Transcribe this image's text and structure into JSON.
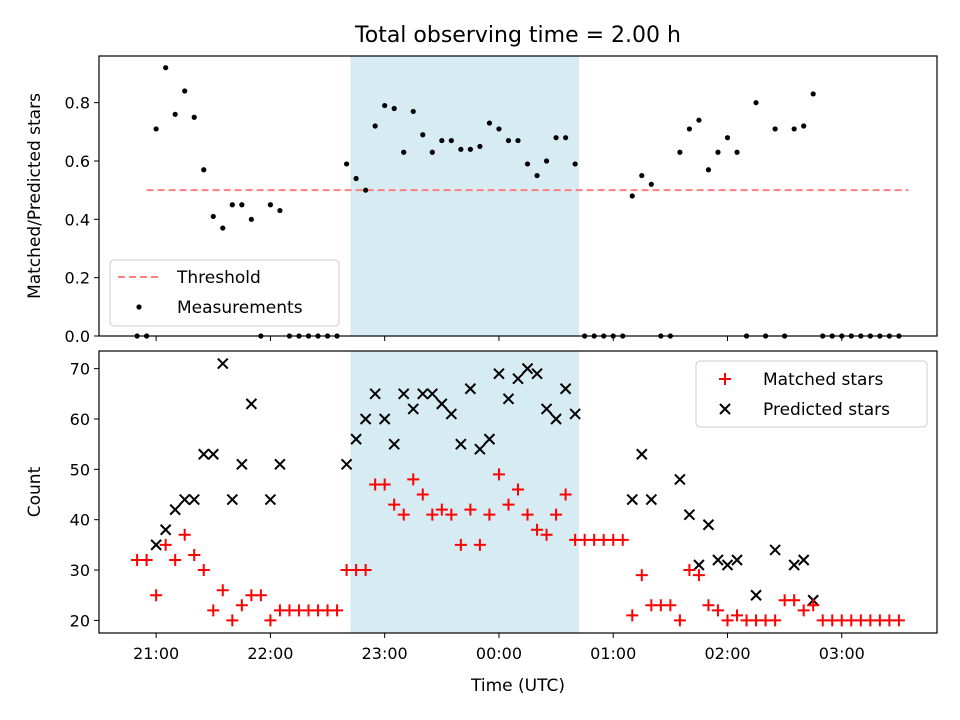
{
  "figure": {
    "title": "Total observing time = 2.00 h",
    "xlabel": "Time (UTC)"
  },
  "colors": {
    "threshold": "#ff8080",
    "measurement": "#000000",
    "matched": "#ff0000",
    "predicted": "#000000",
    "observing_window": "#add8e6"
  },
  "chart_data": [
    {
      "type": "scatter",
      "panel": "top",
      "ylabel": "Matched/Predicted stars",
      "ylim": [
        0,
        0.96
      ],
      "yticks": [
        0.0,
        0.2,
        0.4,
        0.6,
        0.8
      ],
      "ytick_labels": [
        "0.0",
        "0.2",
        "0.4",
        "0.6",
        "0.8"
      ],
      "legend": {
        "position": "lower-left",
        "entries": [
          "Threshold",
          "Measurements"
        ]
      },
      "threshold": {
        "name": "Threshold",
        "value": 0.5,
        "x_start": "20:55",
        "x_end": "03:35"
      },
      "shaded_window": {
        "start": "22:42",
        "end": "00:42"
      },
      "series": [
        {
          "name": "Measurements",
          "x": [
            "20:50",
            "20:55",
            "21:00",
            "21:05",
            "21:10",
            "21:15",
            "21:20",
            "21:25",
            "21:30",
            "21:35",
            "21:40",
            "21:45",
            "21:50",
            "21:55",
            "22:00",
            "22:05",
            "22:10",
            "22:15",
            "22:20",
            "22:25",
            "22:30",
            "22:35",
            "22:40",
            "22:45",
            "22:50",
            "22:55",
            "23:00",
            "23:05",
            "23:10",
            "23:15",
            "23:20",
            "23:25",
            "23:30",
            "23:35",
            "23:40",
            "23:45",
            "23:50",
            "23:55",
            "00:00",
            "00:05",
            "00:10",
            "00:15",
            "00:20",
            "00:25",
            "00:30",
            "00:35",
            "00:40",
            "00:45",
            "00:50",
            "00:55",
            "01:00",
            "01:05",
            "01:10",
            "01:15",
            "01:20",
            "01:25",
            "01:30",
            "01:35",
            "01:40",
            "01:45",
            "01:50",
            "01:55",
            "02:00",
            "02:05",
            "02:10",
            "02:15",
            "02:20",
            "02:25",
            "02:30",
            "02:35",
            "02:40",
            "02:45",
            "02:50",
            "02:55",
            "03:00",
            "03:05",
            "03:10",
            "03:15",
            "03:20",
            "03:25",
            "03:30"
          ],
          "y": [
            0.0,
            0.0,
            0.71,
            0.92,
            0.76,
            0.84,
            0.75,
            0.57,
            0.41,
            0.37,
            0.45,
            0.45,
            0.4,
            0.0,
            0.45,
            0.43,
            0.0,
            0.0,
            0.0,
            0.0,
            0.0,
            0.0,
            0.59,
            0.54,
            0.5,
            0.72,
            0.79,
            0.78,
            0.63,
            0.77,
            0.69,
            0.63,
            0.67,
            0.67,
            0.64,
            0.64,
            0.65,
            0.73,
            0.71,
            0.67,
            0.67,
            0.59,
            0.55,
            0.6,
            0.68,
            0.68,
            0.59,
            0.0,
            0.0,
            0.0,
            0.0,
            0.0,
            0.48,
            0.55,
            0.52,
            0.0,
            0.0,
            0.63,
            0.71,
            0.74,
            0.57,
            0.63,
            0.68,
            0.63,
            0.0,
            0.8,
            0.0,
            0.71,
            0.0,
            0.71,
            0.72,
            0.83,
            0.0,
            0.0,
            0.0,
            0.0,
            0.0,
            0.0,
            0.0,
            0.0,
            0.0
          ]
        }
      ]
    },
    {
      "type": "scatter",
      "panel": "bottom",
      "ylabel": "Count",
      "ylim": [
        17.5,
        73.5
      ],
      "yticks": [
        20,
        30,
        40,
        50,
        60,
        70
      ],
      "ytick_labels": [
        "20",
        "30",
        "40",
        "50",
        "60",
        "70"
      ],
      "xlim": [
        "20:30",
        "03:50"
      ],
      "xticks": [
        "21:00",
        "22:00",
        "23:00",
        "00:00",
        "01:00",
        "02:00",
        "03:00"
      ],
      "xtick_labels": [
        "21:00",
        "22:00",
        "23:00",
        "00:00",
        "01:00",
        "02:00",
        "03:00"
      ],
      "legend": {
        "position": "upper-right",
        "entries": [
          "Matched stars",
          "Predicted stars"
        ]
      },
      "shaded_window": {
        "start": "22:42",
        "end": "00:42"
      },
      "series": [
        {
          "name": "Matched stars",
          "marker": "plus",
          "x": [
            "20:50",
            "20:55",
            "21:00",
            "21:05",
            "21:10",
            "21:15",
            "21:20",
            "21:25",
            "21:30",
            "21:35",
            "21:40",
            "21:45",
            "21:50",
            "21:55",
            "22:00",
            "22:05",
            "22:10",
            "22:15",
            "22:20",
            "22:25",
            "22:30",
            "22:35",
            "22:40",
            "22:45",
            "22:50",
            "22:55",
            "23:00",
            "23:05",
            "23:10",
            "23:15",
            "23:20",
            "23:25",
            "23:30",
            "23:35",
            "23:40",
            "23:45",
            "23:50",
            "23:55",
            "00:00",
            "00:05",
            "00:10",
            "00:15",
            "00:20",
            "00:25",
            "00:30",
            "00:35",
            "00:40",
            "00:45",
            "00:50",
            "00:55",
            "01:00",
            "01:05",
            "01:10",
            "01:15",
            "01:20",
            "01:25",
            "01:30",
            "01:35",
            "01:40",
            "01:45",
            "01:50",
            "01:55",
            "02:00",
            "02:05",
            "02:10",
            "02:15",
            "02:20",
            "02:25",
            "02:30",
            "02:35",
            "02:40",
            "02:45",
            "02:50",
            "02:55",
            "03:00",
            "03:05",
            "03:10",
            "03:15",
            "03:20",
            "03:25",
            "03:30"
          ],
          "y": [
            32,
            32,
            25,
            35,
            32,
            37,
            33,
            30,
            22,
            26,
            20,
            23,
            25,
            25,
            20,
            22,
            22,
            22,
            22,
            22,
            22,
            22,
            30,
            30,
            30,
            47,
            47,
            43,
            41,
            48,
            45,
            41,
            42,
            41,
            35,
            42,
            35,
            41,
            49,
            43,
            46,
            41,
            38,
            37,
            41,
            45,
            36,
            36,
            36,
            36,
            36,
            36,
            21,
            29,
            23,
            23,
            23,
            20,
            30,
            29,
            23,
            22,
            20,
            21,
            20,
            20,
            20,
            20,
            24,
            24,
            22,
            23,
            20,
            20,
            20,
            20,
            20,
            20,
            20,
            20,
            20
          ]
        },
        {
          "name": "Predicted stars",
          "marker": "x",
          "x": [
            "21:00",
            "21:05",
            "21:10",
            "21:15",
            "21:20",
            "21:25",
            "21:30",
            "21:35",
            "21:40",
            "21:45",
            "21:50",
            "22:00",
            "22:05",
            "22:40",
            "22:45",
            "22:50",
            "22:55",
            "23:00",
            "23:05",
            "23:10",
            "23:15",
            "23:20",
            "23:25",
            "23:30",
            "23:35",
            "23:40",
            "23:45",
            "23:50",
            "23:55",
            "00:00",
            "00:05",
            "00:10",
            "00:15",
            "00:20",
            "00:25",
            "00:30",
            "00:35",
            "00:40",
            "01:10",
            "01:15",
            "01:20",
            "01:35",
            "01:40",
            "01:45",
            "01:50",
            "01:55",
            "02:00",
            "02:05",
            "02:15",
            "02:25",
            "02:35",
            "02:40",
            "02:45"
          ],
          "y": [
            35,
            38,
            42,
            44,
            44,
            53,
            53,
            71,
            44,
            51,
            63,
            44,
            51,
            51,
            56,
            60,
            65,
            60,
            55,
            65,
            62,
            65,
            65,
            63,
            61,
            55,
            66,
            54,
            56,
            69,
            64,
            68,
            70,
            69,
            62,
            60,
            66,
            61,
            44,
            53,
            44,
            48,
            41,
            31,
            39,
            32,
            31,
            32,
            25,
            34,
            31,
            32,
            24
          ]
        }
      ]
    }
  ]
}
